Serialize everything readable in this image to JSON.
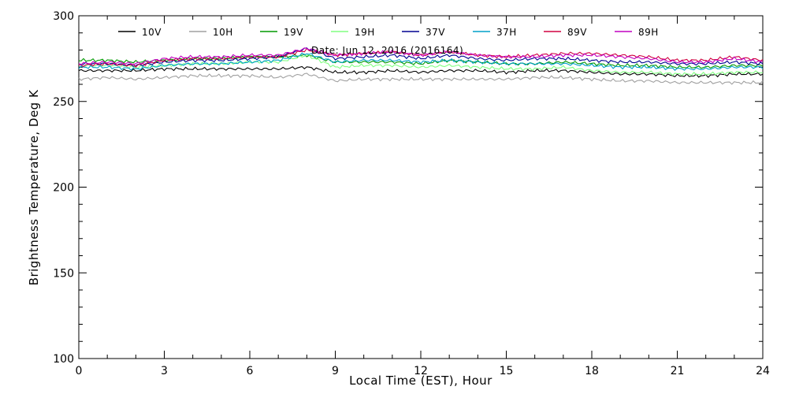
{
  "chart_data": {
    "type": "line",
    "title": "",
    "annotation": "Date: Jun 12, 2016 (2016164)",
    "xlabel": "Local Time (EST), Hour",
    "ylabel": "Brightness Temperature, Deg K",
    "xlim": [
      0,
      24
    ],
    "ylim": [
      100,
      300
    ],
    "xticks": [
      0,
      3,
      6,
      9,
      12,
      15,
      18,
      21,
      24
    ],
    "yticks": [
      100,
      150,
      200,
      250,
      300
    ],
    "grid": false,
    "legend_placement": "top",
    "x": [
      0,
      1,
      2,
      3,
      4,
      5,
      6,
      7,
      8,
      9,
      10,
      11,
      12,
      13,
      14,
      15,
      16,
      17,
      18,
      19,
      20,
      21,
      22,
      23,
      24
    ],
    "series": [
      {
        "name": "10V",
        "color": "#000000",
        "values": [
          268,
          268,
          268,
          269,
          269,
          269,
          269,
          269,
          270,
          267,
          267,
          268,
          267,
          268,
          268,
          267,
          268,
          268,
          267,
          266,
          266,
          265,
          265,
          266,
          266
        ]
      },
      {
        "name": "10H",
        "color": "#a0a0a0",
        "values": [
          263,
          264,
          263,
          264,
          265,
          265,
          265,
          264,
          266,
          262,
          263,
          263,
          263,
          263,
          263,
          263,
          264,
          264,
          263,
          262,
          262,
          261,
          261,
          261,
          261
        ]
      },
      {
        "name": "19V",
        "color": "#009900",
        "values": [
          274,
          274,
          273,
          274,
          275,
          275,
          276,
          276,
          277,
          273,
          273,
          273,
          272,
          274,
          273,
          272,
          272,
          273,
          272,
          271,
          271,
          270,
          270,
          271,
          271
        ]
      },
      {
        "name": "19H",
        "color": "#80ff80",
        "values": [
          271,
          271,
          270,
          271,
          272,
          272,
          273,
          273,
          277,
          270,
          271,
          271,
          270,
          271,
          270,
          269,
          269,
          270,
          268,
          267,
          267,
          266,
          266,
          267,
          267
        ]
      },
      {
        "name": "37V",
        "color": "#000090",
        "values": [
          272,
          272,
          271,
          273,
          274,
          274,
          275,
          276,
          281,
          275,
          276,
          277,
          275,
          277,
          275,
          274,
          275,
          275,
          274,
          273,
          273,
          272,
          272,
          273,
          272
        ]
      },
      {
        "name": "37H",
        "color": "#00a0c8",
        "values": [
          270,
          270,
          269,
          271,
          272,
          272,
          273,
          274,
          278,
          273,
          274,
          274,
          273,
          274,
          273,
          272,
          272,
          272,
          271,
          270,
          270,
          269,
          269,
          270,
          270
        ]
      },
      {
        "name": "89V",
        "color": "#d00040",
        "values": [
          271,
          272,
          271,
          274,
          275,
          275,
          276,
          276,
          280,
          277,
          278,
          279,
          277,
          279,
          277,
          276,
          277,
          278,
          278,
          277,
          276,
          274,
          274,
          276,
          274
        ]
      },
      {
        "name": "89H",
        "color": "#c000c0",
        "values": [
          272,
          273,
          272,
          275,
          276,
          276,
          277,
          277,
          281,
          277,
          278,
          279,
          277,
          279,
          277,
          276,
          276,
          277,
          277,
          276,
          275,
          273,
          273,
          275,
          273
        ]
      }
    ]
  }
}
